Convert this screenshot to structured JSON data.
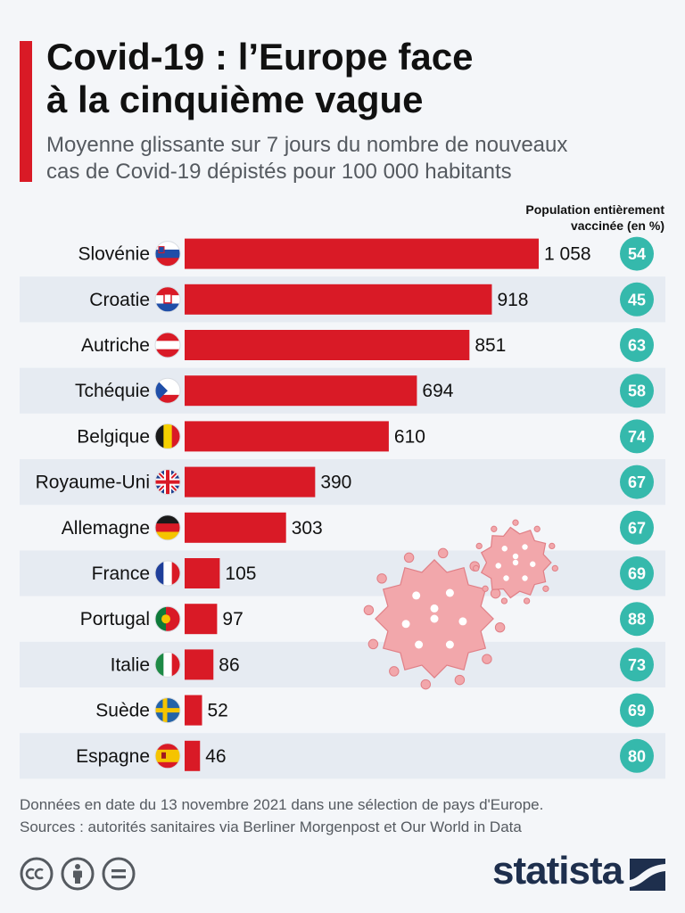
{
  "title_line1": "Covid-19 : l’Europe face",
  "title_line2": "à la cinquième vague",
  "subtitle_line1": "Moyenne glissante sur 7 jours du nombre de nouveaux",
  "subtitle_line2": "cas de Covid-19 dépistés pour 100 000 habitants",
  "vaccination_header_line1": "Population entièrement",
  "vaccination_header_line2": "vaccinée (en %)",
  "footnote_line1": "Données en date du 13 novembre 2021 dans une sélection de pays d'Europe.",
  "footnote_line2": "Sources : autorités sanitaires via Berliner Morgenpost et Our World in Data",
  "brand": "statista",
  "colors": {
    "bar": "#d91a26",
    "vaccination_circle": "#35b9ac",
    "stripe": "#e6ebf2",
    "virus": "#f2a7ab",
    "brand": "#1e2f4d"
  },
  "icons": [
    "creative-commons-icon",
    "attribution-icon",
    "no-derivatives-icon",
    "statista-logo-icon",
    "virus-illustration-icon"
  ],
  "chart_data": {
    "type": "bar",
    "orientation": "horizontal",
    "categories": [
      "Slovénie",
      "Croatie",
      "Autriche",
      "Tchéquie",
      "Belgique",
      "Royaume-Uni",
      "Allemagne",
      "France",
      "Portugal",
      "Italie",
      "Suède",
      "Espagne"
    ],
    "value_labels": [
      "1 058",
      "918",
      "851",
      "694",
      "610",
      "390",
      "303",
      "105",
      "97",
      "86",
      "52",
      "46"
    ],
    "series": [
      {
        "name": "",
        "values": [
          1058,
          918,
          851,
          694,
          610,
          390,
          303,
          105,
          97,
          86,
          52,
          46
        ]
      },
      {
        "name": "Population entièrement vaccinée (en %)",
        "values": [
          54,
          45,
          63,
          58,
          74,
          67,
          67,
          69,
          88,
          73,
          69,
          80
        ]
      }
    ],
    "flags": [
      "slovenia-flag-icon",
      "croatia-flag-icon",
      "austria-flag-icon",
      "czechia-flag-icon",
      "belgium-flag-icon",
      "uk-flag-icon",
      "germany-flag-icon",
      "france-flag-icon",
      "portugal-flag-icon",
      "italy-flag-icon",
      "sweden-flag-icon",
      "spain-flag-icon"
    ],
    "xlim": [
      0,
      1058
    ],
    "grid": false
  }
}
